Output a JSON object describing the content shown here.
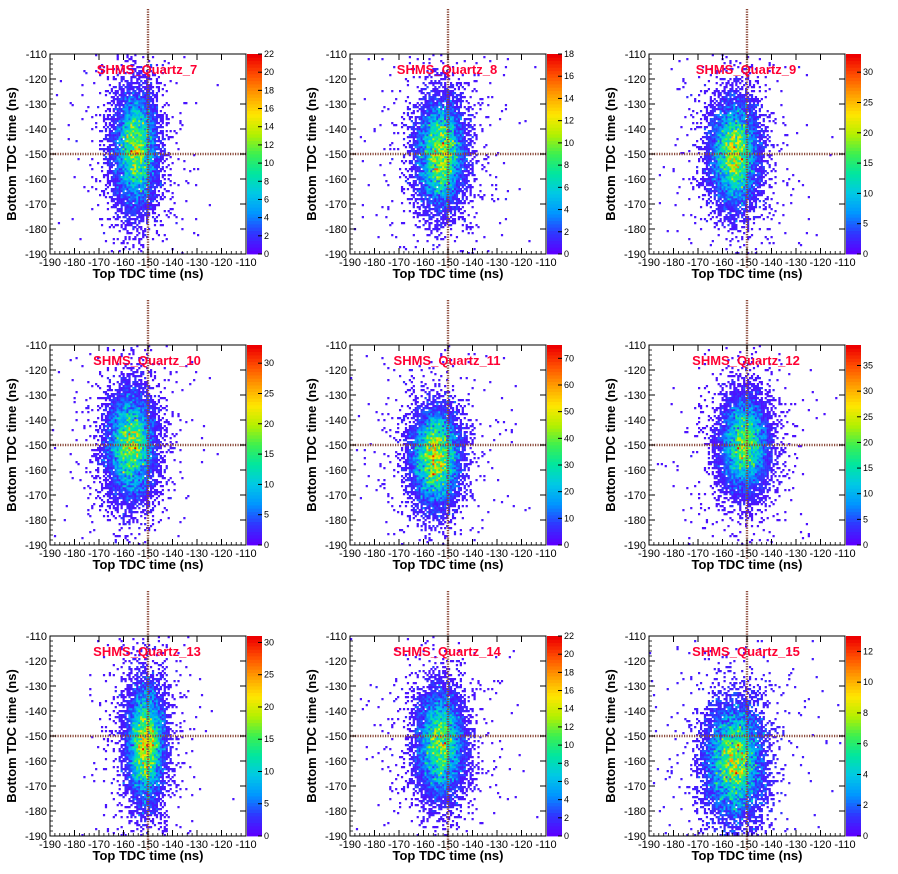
{
  "chart_data": [
    {
      "type": "heatmap",
      "title": "SHMS_Quartz_7",
      "xlabel": "Top TDC time (ns)",
      "ylabel": "Bottom TDC time (ns)",
      "xlim": [
        -190,
        -110
      ],
      "ylim": [
        -190,
        -110
      ],
      "x_ticks": [
        -190,
        -180,
        -170,
        -160,
        -150,
        -140,
        -130,
        -120,
        -110
      ],
      "y_ticks": [
        -190,
        -180,
        -170,
        -160,
        -150,
        -140,
        -130,
        -120,
        -110
      ],
      "zlim": [
        0,
        22
      ],
      "z_ticks": [
        0,
        2,
        4,
        6,
        8,
        10,
        12,
        14,
        16,
        18,
        20,
        22
      ],
      "cluster_center": [
        -155,
        -148
      ],
      "cluster_sigma": [
        4.5,
        12
      ],
      "cut_x": -150,
      "cut_y": -150
    },
    {
      "type": "heatmap",
      "title": "SHMS_Quartz_8",
      "xlabel": "Top TDC time (ns)",
      "ylabel": "Bottom TDC time (ns)",
      "xlim": [
        -190,
        -110
      ],
      "ylim": [
        -190,
        -110
      ],
      "x_ticks": [
        -190,
        -180,
        -170,
        -160,
        -150,
        -140,
        -130,
        -120,
        -110
      ],
      "y_ticks": [
        -190,
        -180,
        -170,
        -160,
        -150,
        -140,
        -130,
        -120,
        -110
      ],
      "zlim": [
        0,
        18
      ],
      "z_ticks": [
        0,
        2,
        4,
        6,
        8,
        10,
        12,
        14,
        16,
        18
      ],
      "cluster_center": [
        -153,
        -150
      ],
      "cluster_sigma": [
        5,
        11
      ],
      "cut_x": -150,
      "cut_y": -150
    },
    {
      "type": "heatmap",
      "title": "SHMS_Quartz_9",
      "xlabel": "Top TDC time (ns)",
      "ylabel": "Bottom TDC time (ns)",
      "xlim": [
        -190,
        -110
      ],
      "ylim": [
        -190,
        -110
      ],
      "x_ticks": [
        -190,
        -180,
        -170,
        -160,
        -150,
        -140,
        -130,
        -120,
        -110
      ],
      "y_ticks": [
        -190,
        -180,
        -170,
        -160,
        -150,
        -140,
        -130,
        -120,
        -110
      ],
      "zlim": [
        0,
        33
      ],
      "z_ticks": [
        0,
        5,
        10,
        15,
        20,
        25,
        30
      ],
      "cluster_center": [
        -155,
        -150
      ],
      "cluster_sigma": [
        5,
        11
      ],
      "cut_x": -150,
      "cut_y": -150
    },
    {
      "type": "heatmap",
      "title": "SHMS_Quartz_10",
      "xlabel": "Top TDC time (ns)",
      "ylabel": "Bottom TDC time (ns)",
      "xlim": [
        -190,
        -110
      ],
      "ylim": [
        -190,
        -110
      ],
      "x_ticks": [
        -190,
        -180,
        -170,
        -160,
        -150,
        -140,
        -130,
        -120,
        -110
      ],
      "y_ticks": [
        -190,
        -180,
        -170,
        -160,
        -150,
        -140,
        -130,
        -120,
        -110
      ],
      "zlim": [
        0,
        33
      ],
      "z_ticks": [
        0,
        5,
        10,
        15,
        20,
        25,
        30
      ],
      "cluster_center": [
        -157,
        -150
      ],
      "cluster_sigma": [
        5,
        11
      ],
      "cut_x": -150,
      "cut_y": -150
    },
    {
      "type": "heatmap",
      "title": "SHMS_Quartz_11",
      "xlabel": "Top TDC time (ns)",
      "ylabel": "Bottom TDC time (ns)",
      "xlim": [
        -190,
        -110
      ],
      "ylim": [
        -190,
        -110
      ],
      "x_ticks": [
        -190,
        -180,
        -170,
        -160,
        -150,
        -140,
        -130,
        -120,
        -110
      ],
      "y_ticks": [
        -190,
        -180,
        -170,
        -160,
        -150,
        -140,
        -130,
        -120,
        -110
      ],
      "zlim": [
        0,
        75
      ],
      "z_ticks": [
        0,
        10,
        20,
        30,
        40,
        50,
        60,
        70
      ],
      "cluster_center": [
        -155,
        -155
      ],
      "cluster_sigma": [
        5,
        10
      ],
      "cut_x": -150,
      "cut_y": -150
    },
    {
      "type": "heatmap",
      "title": "SHMS_Quartz_12",
      "xlabel": "Top TDC time (ns)",
      "ylabel": "Bottom TDC time (ns)",
      "xlim": [
        -190,
        -110
      ],
      "ylim": [
        -190,
        -110
      ],
      "x_ticks": [
        -190,
        -180,
        -170,
        -160,
        -150,
        -140,
        -130,
        -120,
        -110
      ],
      "y_ticks": [
        -190,
        -180,
        -170,
        -160,
        -150,
        -140,
        -130,
        -120,
        -110
      ],
      "zlim": [
        0,
        39
      ],
      "z_ticks": [
        0,
        5,
        10,
        15,
        20,
        25,
        30,
        35
      ],
      "cluster_center": [
        -151,
        -150
      ],
      "cluster_sigma": [
        5,
        10
      ],
      "cut_x": -150,
      "cut_y": -150
    },
    {
      "type": "heatmap",
      "title": "SHMS_Quartz_13",
      "xlabel": "Top TDC time (ns)",
      "ylabel": "Bottom TDC time (ns)",
      "xlim": [
        -190,
        -110
      ],
      "ylim": [
        -190,
        -110
      ],
      "x_ticks": [
        -190,
        -180,
        -170,
        -160,
        -150,
        -140,
        -130,
        -120,
        -110
      ],
      "y_ticks": [
        -190,
        -180,
        -170,
        -160,
        -150,
        -140,
        -130,
        -120,
        -110
      ],
      "zlim": [
        0,
        31
      ],
      "z_ticks": [
        0,
        5,
        10,
        15,
        20,
        25,
        30
      ],
      "cluster_center": [
        -151,
        -153
      ],
      "cluster_sigma": [
        4,
        12
      ],
      "cut_x": -150,
      "cut_y": -150
    },
    {
      "type": "heatmap",
      "title": "SHMS_Quartz_14",
      "xlabel": "Top TDC time (ns)",
      "ylabel": "Bottom TDC time (ns)",
      "xlim": [
        -190,
        -110
      ],
      "ylim": [
        -190,
        -110
      ],
      "x_ticks": [
        -190,
        -180,
        -170,
        -160,
        -150,
        -140,
        -130,
        -120,
        -110
      ],
      "y_ticks": [
        -190,
        -180,
        -170,
        -160,
        -150,
        -140,
        -130,
        -120,
        -110
      ],
      "zlim": [
        0,
        22
      ],
      "z_ticks": [
        0,
        2,
        4,
        6,
        8,
        10,
        12,
        14,
        16,
        18,
        20,
        22
      ],
      "cluster_center": [
        -153,
        -153
      ],
      "cluster_sigma": [
        5,
        11
      ],
      "cut_x": -150,
      "cut_y": -150
    },
    {
      "type": "heatmap",
      "title": "SHMS_Quartz_15",
      "xlabel": "Top TDC time (ns)",
      "ylabel": "Bottom TDC time (ns)",
      "xlim": [
        -190,
        -110
      ],
      "ylim": [
        -190,
        -110
      ],
      "x_ticks": [
        -190,
        -180,
        -170,
        -160,
        -150,
        -140,
        -130,
        -120,
        -110
      ],
      "y_ticks": [
        -190,
        -180,
        -170,
        -160,
        -150,
        -140,
        -130,
        -120,
        -110
      ],
      "zlim": [
        0,
        13
      ],
      "z_ticks": [
        0,
        2,
        4,
        6,
        8,
        10,
        12
      ],
      "cluster_center": [
        -155,
        -160
      ],
      "cluster_sigma": [
        6,
        12
      ],
      "cut_x": -150,
      "cut_y": -150
    }
  ],
  "colors": {
    "title": "#ff0033",
    "cut_line": "#8b4a3a",
    "axis": "#000000",
    "palette": [
      "#5a00ff",
      "#2e38ff",
      "#0096ff",
      "#00c8e6",
      "#00e6a0",
      "#3cf050",
      "#b4f000",
      "#ffe600",
      "#ffa000",
      "#ff5000",
      "#ee0000"
    ]
  }
}
